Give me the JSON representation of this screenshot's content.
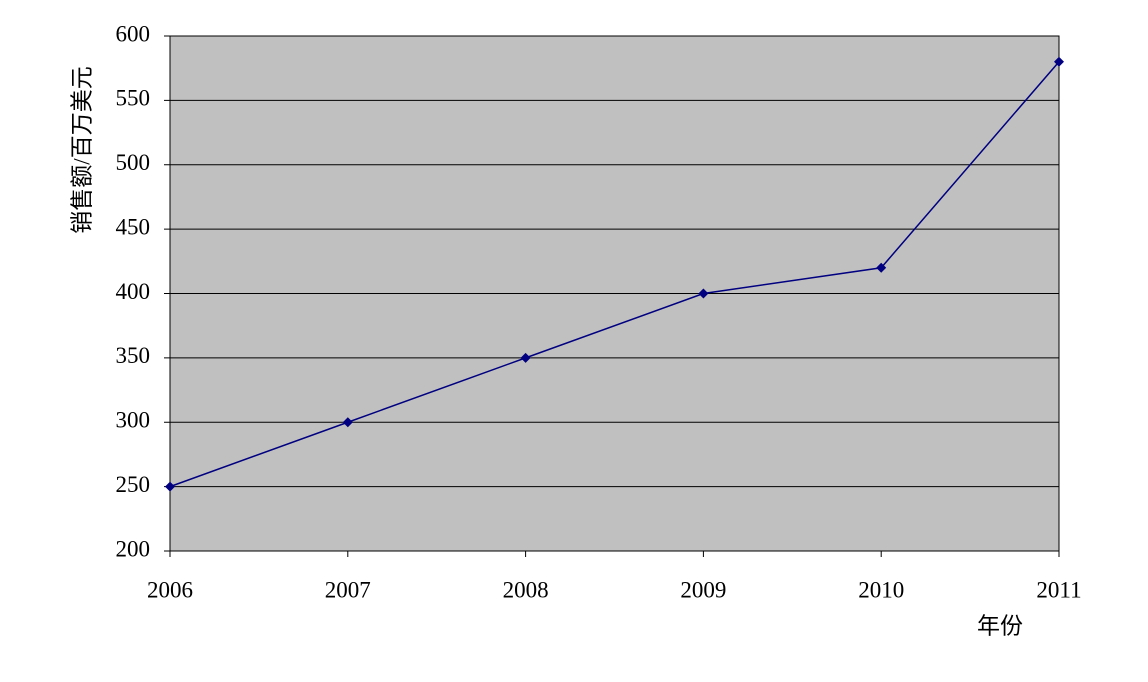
{
  "chart_data": {
    "type": "line",
    "x": [
      2006,
      2007,
      2008,
      2009,
      2010,
      2011
    ],
    "series": [
      {
        "name": "销售额",
        "color": "#000080",
        "values": [
          250,
          300,
          350,
          400,
          420,
          580
        ]
      }
    ],
    "xlim": [
      2006,
      2011
    ],
    "xticks": [
      2006,
      2007,
      2008,
      2009,
      2010,
      2011
    ],
    "ylim": [
      200,
      600
    ],
    "yticks": [
      200,
      250,
      300,
      350,
      400,
      450,
      500,
      550,
      600
    ],
    "xlabel": "年份",
    "ylabel": "销售额/百万美元",
    "grid": true,
    "background": "#c0c0c0"
  }
}
